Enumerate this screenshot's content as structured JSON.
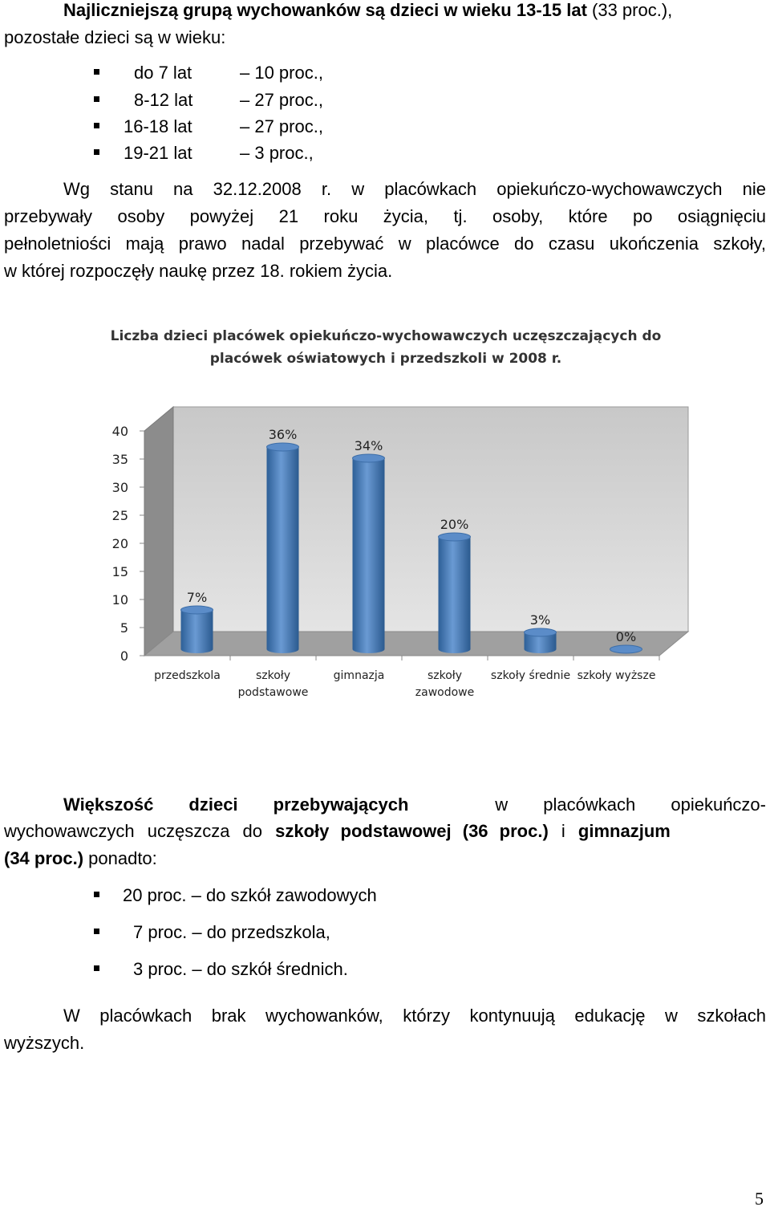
{
  "intro": {
    "bold": "Najliczniejszą grupą wychowanków są dzieci w wieku 13-15 lat",
    "after": " (33 proc.),",
    "line2": "pozostałe dzieci są w wieku:"
  },
  "age_list": [
    {
      "age": "do 7 lat",
      "pct": "– 10 proc.,"
    },
    {
      "age": "8-12 lat",
      "pct": "– 27 proc.,"
    },
    {
      "age": "16-18 lat",
      "pct": "– 27 proc.,"
    },
    {
      "age": "19-21 lat",
      "pct": "– 3 proc.,"
    }
  ],
  "status_para": [
    "Wg stanu na 32.12.2008 r. w placówkach opiekuńczo-wychowawczych nie",
    "przebywały osoby powyżej 21 roku życia, tj. osoby, które po osiągnięciu",
    "pełnoletniości mają prawo nadal przebywać w placówce do czasu ukończenia szkoły,",
    "w której rozpoczęły naukę przez 18. rokiem życia."
  ],
  "chart_data": {
    "type": "bar",
    "title_line1": "Liczba dzieci placówek opiekuńczo-wychowawczych uczęszczających do",
    "title_line2": "placówek oświatowych i przedszkoli w 2008 r.",
    "categories": [
      "przedszkola",
      "szkoły podstawowe",
      "gimnazja",
      "szkoły zawodowe",
      "szkoły średnie",
      "szkoły wyższe"
    ],
    "category_lines": [
      [
        "przedszkola"
      ],
      [
        "szkoły",
        "podstawowe"
      ],
      [
        "gimnazja"
      ],
      [
        "szkoły",
        "zawodowe"
      ],
      [
        "szkoły średnie"
      ],
      [
        "szkoły wyższe"
      ]
    ],
    "values": [
      7,
      36,
      34,
      20,
      3,
      0
    ],
    "data_labels": [
      "7%",
      "36%",
      "34%",
      "20%",
      "3%",
      "0%"
    ],
    "ylim": [
      0,
      40
    ],
    "yticks": [
      0,
      5,
      10,
      15,
      20,
      25,
      30,
      35,
      40
    ],
    "grid": false,
    "style": "3d-cylinder",
    "bar_color": "#4f81bd",
    "wall_color": "#d0d0d0"
  },
  "school_para": {
    "p1_bold": "Większość dzieci przebywających",
    "p1_rest": "w placówkach opiekuńczo-",
    "p2_a": "wychowawczych uczęszcza do",
    "p2_bold1": "szkoły podstawowej (36 proc.)",
    "p2_b": "i",
    "p2_bold2": "gimnazjum",
    "p3_bold": "(34 proc.)",
    "p3_rest": " ponadto:"
  },
  "school_list": [
    "20 proc. – do szkół zawodowych",
    "7 proc. – do przedszkola,",
    "3 proc. – do szkół średnich."
  ],
  "closing_para": [
    "W placówkach brak wychowanków, którzy kontynuują edukację w szkołach",
    "wyższych."
  ],
  "page_number": "5"
}
